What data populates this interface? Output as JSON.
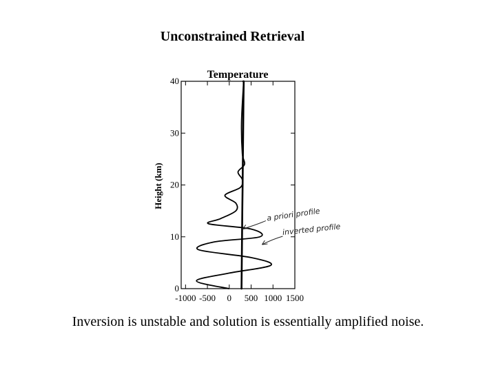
{
  "slide": {
    "title": "Unconstrained Retrieval",
    "caption": "Inversion is unstable and solution is essentially amplified noise."
  },
  "chart_data": {
    "type": "line",
    "title": "Temperature",
    "xlabel": "",
    "ylabel": "Height (km)",
    "xlim": [
      -1100,
      1500
    ],
    "ylim": [
      0,
      40
    ],
    "x_ticks": [
      -1000,
      -500,
      0,
      500,
      1000,
      1500
    ],
    "x_tick_labels": [
      "-1000",
      "-500",
      "0",
      "500",
      "1000",
      "1500"
    ],
    "y_ticks": [
      0,
      10,
      20,
      30,
      40
    ],
    "y_tick_labels": [
      "0",
      "10",
      "20",
      "30",
      "40"
    ],
    "grid": false,
    "series": [
      {
        "role": "a-priori",
        "x": [
          280,
          285,
          290,
          295,
          300,
          305,
          310,
          315,
          320,
          325,
          330,
          320
        ],
        "y": [
          0,
          4,
          8,
          12,
          16,
          20,
          24,
          28,
          32,
          36,
          40,
          40
        ]
      },
      {
        "role": "inverted",
        "x": [
          -10,
          -750,
          0,
          950,
          500,
          -700,
          -350,
          700,
          500,
          -470,
          -200,
          150,
          150,
          -100,
          250,
          300,
          200,
          350,
          300,
          280,
          330
        ],
        "y": [
          0,
          1.5,
          3,
          4.5,
          6,
          7.5,
          9,
          10,
          11.5,
          12.5,
          13.5,
          15,
          16.5,
          18,
          19.5,
          21,
          22.5,
          24,
          26,
          32,
          40
        ]
      }
    ],
    "annotations": [
      {
        "text": "a priori profile",
        "x": 300,
        "y": 11.5
      },
      {
        "text": "inverted profile",
        "x": 750,
        "y": 8.5
      }
    ]
  }
}
